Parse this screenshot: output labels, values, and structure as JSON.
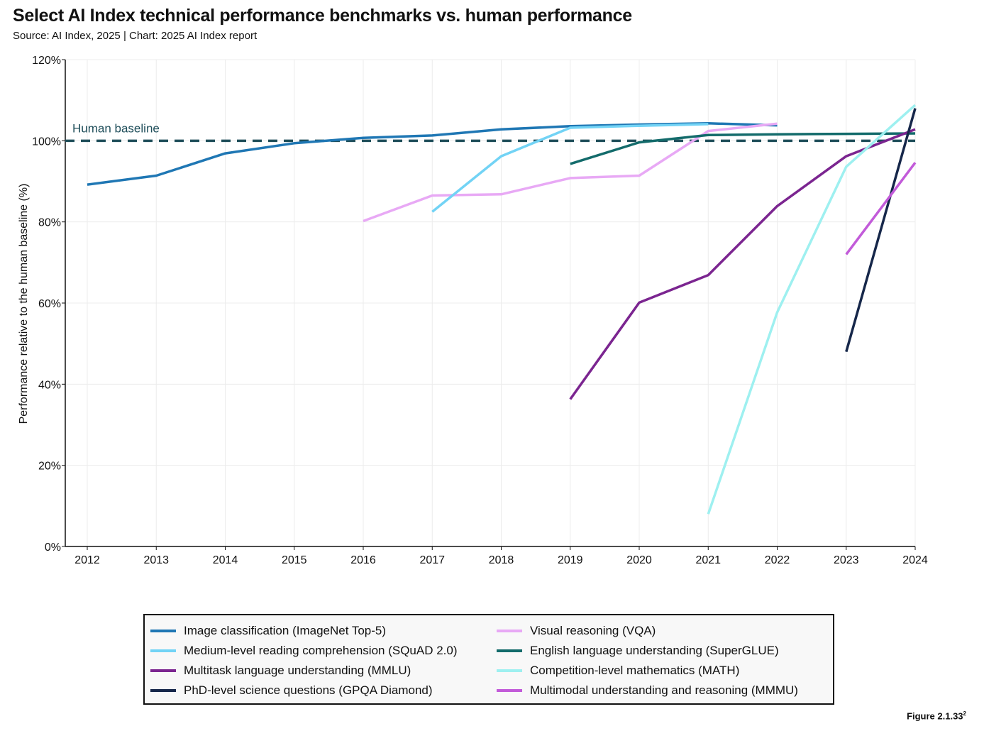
{
  "header": {
    "title": "Select AI Index technical performance benchmarks vs. human performance",
    "subtitle": "Source: AI Index, 2025 | Chart: 2025 AI Index report"
  },
  "footer": {
    "figure_label": "Figure 2.1.33",
    "figure_sup": "2"
  },
  "chart_data": {
    "type": "line",
    "title": "Select AI Index technical performance benchmarks vs. human performance",
    "xlabel": "",
    "ylabel": "Performance relative to the human baseline (%)",
    "xlim": [
      2012,
      2024
    ],
    "ylim": [
      0,
      120
    ],
    "x_ticks": [
      "2012",
      "2013",
      "2014",
      "2015",
      "2016",
      "2017",
      "2018",
      "2019",
      "2020",
      "2021",
      "2022",
      "2023",
      "2024"
    ],
    "y_ticks": [
      {
        "value": 0,
        "label": "0%"
      },
      {
        "value": 20,
        "label": "20%"
      },
      {
        "value": 40,
        "label": "40%"
      },
      {
        "value": 60,
        "label": "60%"
      },
      {
        "value": 80,
        "label": "80%"
      },
      {
        "value": 100,
        "label": "100%"
      },
      {
        "value": 120,
        "label": "120%"
      }
    ],
    "baseline": {
      "label": "Human baseline",
      "value": 100,
      "color": "#1f4e5a"
    },
    "grid": true,
    "legend_position": "bottom",
    "series": [
      {
        "name": "Image classification (ImageNet Top-5)",
        "color": "#1f77b4",
        "x": [
          2012,
          2013,
          2014,
          2015,
          2016,
          2017,
          2018,
          2019,
          2020,
          2021,
          2022
        ],
        "values": [
          89.2,
          91.4,
          96.9,
          99.4,
          100.7,
          101.3,
          102.8,
          103.6,
          104.0,
          104.3,
          103.8
        ]
      },
      {
        "name": "Visual reasoning (VQA)",
        "color": "#e8a9f5",
        "x": [
          2016,
          2017,
          2018,
          2019,
          2020,
          2021,
          2022
        ],
        "values": [
          80.2,
          86.5,
          86.8,
          90.8,
          91.4,
          102.4,
          104.2
        ]
      },
      {
        "name": "Medium-level reading comprehension (SQuAD 2.0)",
        "color": "#72d3f5",
        "x": [
          2017,
          2018,
          2019,
          2020,
          2021
        ],
        "values": [
          82.5,
          96.2,
          103.2,
          103.7,
          104.1
        ]
      },
      {
        "name": "English language understanding (SuperGLUE)",
        "color": "#136b6b",
        "x": [
          2019,
          2020,
          2021,
          2022,
          2023,
          2024
        ],
        "values": [
          94.3,
          99.6,
          101.4,
          101.6,
          101.7,
          101.8
        ]
      },
      {
        "name": "Multitask language understanding (MMLU)",
        "color": "#7b2590",
        "x": [
          2019,
          2020,
          2021,
          2022,
          2023,
          2024
        ],
        "values": [
          36.3,
          60.1,
          66.9,
          83.9,
          96.2,
          102.8
        ]
      },
      {
        "name": "Competition-level mathematics (MATH)",
        "color": "#9ef0f0",
        "x": [
          2021,
          2022,
          2023,
          2024
        ],
        "values": [
          8.0,
          57.7,
          93.6,
          108.8
        ]
      },
      {
        "name": "PhD-level science questions (GPQA Diamond)",
        "color": "#16274a",
        "x": [
          2023,
          2024
        ],
        "values": [
          48.0,
          108.0
        ]
      },
      {
        "name": "Multimodal understanding and reasoning (MMMU)",
        "color": "#c25bd9",
        "x": [
          2023,
          2024
        ],
        "values": [
          72.0,
          94.6
        ]
      }
    ]
  },
  "legend": {
    "order": [
      0,
      1,
      2,
      3,
      4,
      5,
      6,
      7
    ]
  }
}
